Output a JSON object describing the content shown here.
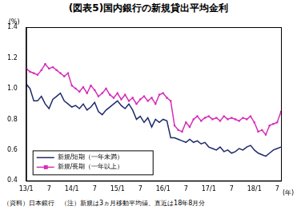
{
  "chart_data": {
    "type": "line",
    "title": "(図表5)国内銀行の新規貸出平均金利",
    "y_unit": "(%)",
    "x_unit": "(年)",
    "note": "（資料）日本銀行　（注）新規は3ヵ月移動平均値、直近は18年8月分",
    "categories": [
      "13/1",
      null,
      null,
      null,
      null,
      null,
      "7",
      null,
      null,
      null,
      null,
      null,
      "14/1",
      null,
      null,
      null,
      null,
      null,
      "7",
      null,
      null,
      null,
      null,
      null,
      "15/1",
      null,
      null,
      null,
      null,
      null,
      "7",
      null,
      null,
      null,
      null,
      null,
      "16/1",
      null,
      null,
      null,
      null,
      null,
      "7",
      null,
      null,
      null,
      null,
      null,
      "17/1",
      null,
      null,
      null,
      null,
      null,
      "7",
      null,
      null,
      null,
      null,
      null,
      "18/1",
      null,
      null,
      null,
      null,
      null,
      "7",
      null
    ],
    "series": [
      {
        "name": "新規/短期（一年未満）",
        "color": "#1f2a6b",
        "marker": "none",
        "values": [
          1.03,
          1.0,
          0.92,
          0.92,
          0.95,
          0.9,
          0.87,
          0.93,
          0.95,
          0.97,
          0.92,
          0.9,
          0.88,
          0.89,
          0.87,
          0.9,
          0.86,
          0.88,
          0.91,
          0.85,
          0.83,
          0.86,
          0.88,
          0.9,
          0.92,
          0.89,
          0.87,
          0.9,
          0.86,
          0.8,
          0.82,
          0.78,
          0.81,
          0.75,
          0.8,
          0.78,
          0.8,
          0.79,
          0.68,
          0.68,
          0.67,
          0.66,
          0.65,
          0.67,
          0.65,
          0.66,
          0.64,
          0.65,
          0.62,
          0.61,
          0.6,
          0.62,
          0.59,
          0.6,
          0.58,
          0.59,
          0.61,
          0.6,
          0.62,
          0.63,
          0.6,
          0.58,
          0.57,
          0.56,
          0.58,
          0.6,
          0.61,
          0.62
        ]
      },
      {
        "name": "新規/長期（一年以上）",
        "color": "#d62fb8",
        "marker": "square",
        "values": [
          1.13,
          1.11,
          1.1,
          1.09,
          1.12,
          1.16,
          1.13,
          1.14,
          1.12,
          1.1,
          1.08,
          1.1,
          1.02,
          1.0,
          0.98,
          1.01,
          0.97,
          1.02,
          0.99,
          0.95,
          0.97,
          1.0,
          0.96,
          0.94,
          0.97,
          0.93,
          0.96,
          0.92,
          0.94,
          0.9,
          0.93,
          0.95,
          0.92,
          0.94,
          0.9,
          0.96,
          0.97,
          0.94,
          0.92,
          0.76,
          0.73,
          0.72,
          0.78,
          0.75,
          0.8,
          0.82,
          0.79,
          0.81,
          0.82,
          0.8,
          0.81,
          0.79,
          0.82,
          0.8,
          0.81,
          0.8,
          0.79,
          0.81,
          0.8,
          0.82,
          0.78,
          0.72,
          0.73,
          0.7,
          0.76,
          0.77,
          0.78,
          0.85
        ]
      }
    ],
    "ylim": [
      0.4,
      1.4
    ],
    "yticks": [
      0.4,
      0.6,
      0.8,
      {
        "value": 1,
        "label": "1.0"
      },
      1.2,
      1.4
    ],
    "grid": false,
    "legend": "lower left"
  }
}
